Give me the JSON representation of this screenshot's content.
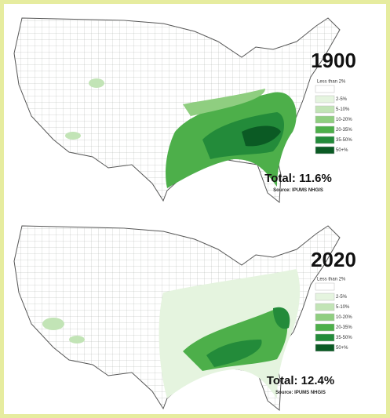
{
  "maps": [
    {
      "year": "1900",
      "legend": [
        {
          "label": "Less than 2%",
          "color": "#ffffff"
        },
        {
          "label": "2-5%",
          "color": "#e5f4df"
        },
        {
          "label": "5-10%",
          "color": "#c2e4b6"
        },
        {
          "label": "10-20%",
          "color": "#8fce80"
        },
        {
          "label": "20-35%",
          "color": "#4daf4a"
        },
        {
          "label": "35-50%",
          "color": "#238b3a"
        },
        {
          "label": "50+%",
          "color": "#0b5a24"
        }
      ],
      "total": "Total: 11.6%",
      "source": "Source: IPUMS NHGIS"
    },
    {
      "year": "2020",
      "legend": [
        {
          "label": "Less than 2%",
          "color": "#ffffff"
        },
        {
          "label": "2-5%",
          "color": "#e5f4df"
        },
        {
          "label": "5-10%",
          "color": "#c2e4b6"
        },
        {
          "label": "10-20%",
          "color": "#8fce80"
        },
        {
          "label": "20-35%",
          "color": "#4daf4a"
        },
        {
          "label": "35-50%",
          "color": "#238b3a"
        },
        {
          "label": "50+%",
          "color": "#0b5a24"
        }
      ],
      "total": "Total: 12.4%",
      "source": "Source: IPUMS NHGIS"
    }
  ]
}
